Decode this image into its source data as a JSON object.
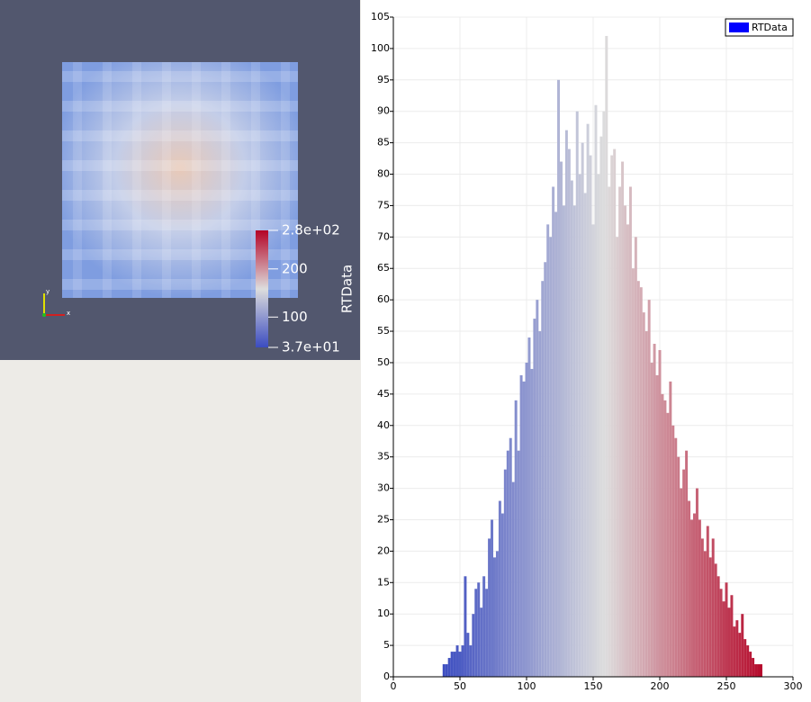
{
  "render_view": {
    "colorbar": {
      "title": "RTData",
      "range": [
        37,
        280
      ],
      "colormap": [
        "#3b4cc0",
        "#dddddd",
        "#b40426"
      ],
      "ticks": [
        {
          "value": 280,
          "label": "2.8e+02"
        },
        200,
        100,
        {
          "value": 37,
          "label": "3.7e+01"
        }
      ]
    },
    "orientation_axes": {
      "x": "x",
      "y": "y"
    }
  },
  "chart_data": {
    "type": "histogram",
    "legend": "top-right",
    "grid": true,
    "bins": [
      37,
      39,
      41,
      43,
      45,
      47,
      49,
      51,
      53,
      55,
      57,
      59,
      61,
      63,
      65,
      67,
      69,
      71,
      73,
      75,
      77,
      79,
      81,
      83,
      85,
      87,
      89,
      91,
      93,
      95,
      97,
      99,
      101,
      103,
      105,
      107,
      109,
      111,
      113,
      115,
      117,
      119,
      121,
      123,
      125,
      127,
      129,
      131,
      133,
      135,
      137,
      139,
      141,
      143,
      145,
      147,
      149,
      151,
      153,
      155,
      157,
      159,
      161,
      163,
      165,
      167,
      169,
      171,
      173,
      175,
      177,
      179,
      181,
      183,
      185,
      187,
      189,
      191,
      193,
      195,
      197,
      199,
      201,
      203,
      205,
      207,
      209,
      211,
      213,
      215,
      217,
      219,
      221,
      223,
      225,
      227,
      229,
      231,
      233,
      235,
      237,
      239,
      241,
      243,
      245,
      247,
      249,
      251,
      253,
      255,
      257,
      259,
      261,
      263,
      265,
      267,
      269,
      271,
      273,
      275,
      277
    ],
    "series": [
      {
        "name": "RTData",
        "color": "#0000ff",
        "values": [
          2,
          2,
          3,
          4,
          4,
          5,
          4,
          5,
          16,
          7,
          5,
          10,
          14,
          15,
          11,
          16,
          14,
          22,
          25,
          19,
          20,
          28,
          26,
          33,
          36,
          38,
          31,
          44,
          36,
          48,
          47,
          50,
          54,
          49,
          57,
          60,
          55,
          63,
          66,
          72,
          70,
          78,
          74,
          95,
          82,
          75,
          87,
          84,
          79,
          75,
          90,
          80,
          85,
          77,
          88,
          83,
          72,
          91,
          80,
          86,
          90,
          102,
          78,
          83,
          84,
          70,
          78,
          82,
          75,
          72,
          78,
          65,
          70,
          63,
          62,
          58,
          55,
          60,
          50,
          53,
          48,
          52,
          45,
          44,
          42,
          47,
          40,
          38,
          35,
          30,
          33,
          36,
          28,
          25,
          26,
          30,
          25,
          22,
          20,
          24,
          19,
          22,
          18,
          16,
          14,
          12,
          15,
          11,
          13,
          8,
          9,
          7,
          10,
          6,
          5,
          4,
          3,
          2,
          2,
          2
        ]
      }
    ],
    "xlim": [
      0,
      300
    ],
    "xticks": [
      0,
      50,
      100,
      150,
      200,
      250,
      300
    ],
    "ylim": [
      0,
      105
    ],
    "yticks": [
      0,
      5,
      10,
      15,
      20,
      25,
      30,
      35,
      40,
      45,
      50,
      55,
      60,
      65,
      70,
      75,
      80,
      85,
      90,
      95,
      100,
      105
    ]
  }
}
